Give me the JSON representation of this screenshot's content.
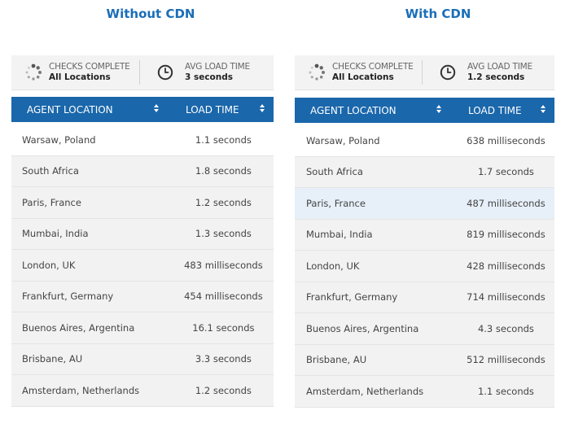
{
  "panels": [
    {
      "title": "Without CDN",
      "checks_label": "CHECKS COMPLETE",
      "checks_value": "All Locations",
      "avg_label": "AVG LOAD TIME",
      "avg_value": "3 seconds",
      "col_location": "AGENT LOCATION",
      "col_time": "LOAD TIME",
      "rows": [
        {
          "location": "Warsaw, Poland",
          "time": "1.1 seconds"
        },
        {
          "location": "South Africa",
          "time": "1.8 seconds"
        },
        {
          "location": "Paris, France",
          "time": "1.2 seconds"
        },
        {
          "location": "Mumbai, India",
          "time": "1.3 seconds"
        },
        {
          "location": "London, UK",
          "time": "483 milliseconds"
        },
        {
          "location": "Frankfurt, Germany",
          "time": "454 milliseconds"
        },
        {
          "location": "Buenos Aires, Argentina",
          "time": "16.1 seconds"
        },
        {
          "location": "Brisbane, AU",
          "time": "3.3 seconds"
        },
        {
          "location": "Amsterdam, Netherlands",
          "time": "1.2 seconds"
        }
      ]
    },
    {
      "title": "With CDN",
      "checks_label": "CHECKS COMPLETE",
      "checks_value": "All Locations",
      "avg_label": "AVG LOAD TIME",
      "avg_value": "1.2 seconds",
      "col_location": "AGENT LOCATION",
      "col_time": "LOAD TIME",
      "rows": [
        {
          "location": "Warsaw, Poland",
          "time": "638 milliseconds"
        },
        {
          "location": "South Africa",
          "time": "1.7 seconds"
        },
        {
          "location": "Paris, France",
          "time": "487 milliseconds"
        },
        {
          "location": "Mumbai, India",
          "time": "819 milliseconds"
        },
        {
          "location": "London, UK",
          "time": "428 milliseconds"
        },
        {
          "location": "Frankfurt, Germany",
          "time": "714 milliseconds"
        },
        {
          "location": "Buenos Aires, Argentina",
          "time": "4.3 seconds"
        },
        {
          "location": "Brisbane, AU",
          "time": "512 milliseconds"
        },
        {
          "location": "Amsterdam, Netherlands",
          "time": "1.1 seconds"
        }
      ]
    }
  ],
  "icons": {
    "checks": "loading-spinner-icon",
    "avg": "clock-icon"
  },
  "colors": {
    "title": "#1a6eb8",
    "header": "#1a67ab",
    "highlight_row": "#e7f0f9"
  }
}
